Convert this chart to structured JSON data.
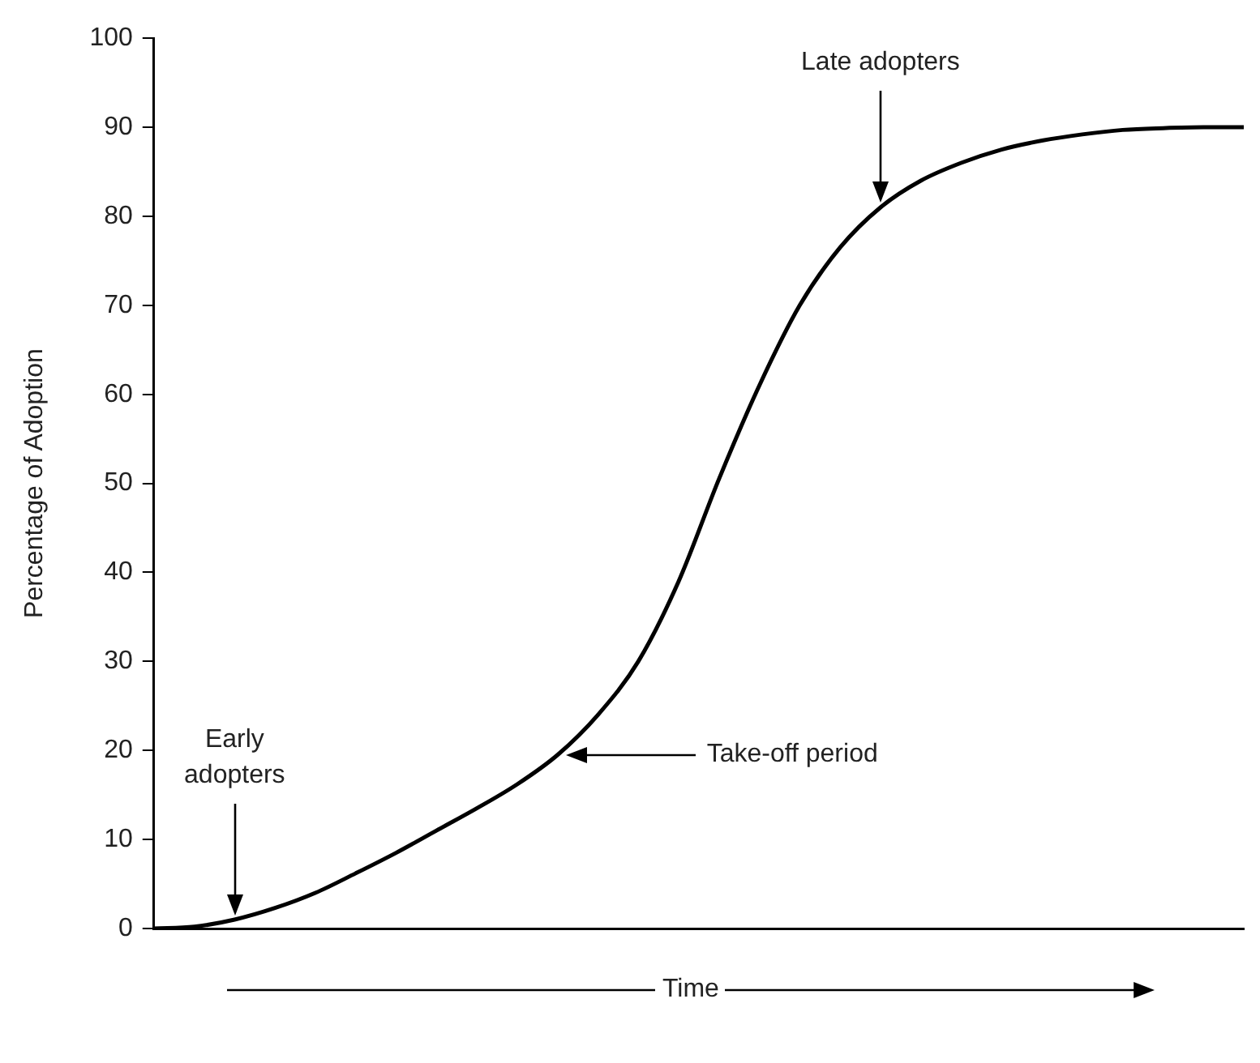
{
  "chart_data": {
    "type": "line",
    "ylabel": "Percentage of Adoption",
    "xlabel": "Time",
    "categories": [
      null,
      null,
      null,
      null,
      null,
      null,
      null,
      null,
      null,
      null,
      null,
      null,
      null,
      null,
      null,
      null,
      null,
      null,
      null,
      null,
      null,
      null,
      null,
      null,
      null,
      null,
      null,
      null
    ],
    "values": [
      0,
      0.2,
      1,
      2.3,
      4,
      6.2,
      8.5,
      11,
      13.5,
      16.2,
      19.5,
      24,
      30,
      39,
      50.5,
      61,
      70,
      76.5,
      81,
      84,
      86,
      87.5,
      88.5,
      89.2,
      89.7,
      89.9,
      90,
      90
    ],
    "color": "#000000",
    "ylim": [
      0,
      100
    ],
    "yticks": [
      0,
      10,
      20,
      30,
      40,
      50,
      60,
      70,
      80,
      90,
      100
    ],
    "tick_labels": "y",
    "grid": false,
    "legend": false,
    "marker": "none",
    "line_style": "solid",
    "annotations": [
      "Early\nadopters",
      "Take-off period",
      "Late adopters"
    ]
  }
}
